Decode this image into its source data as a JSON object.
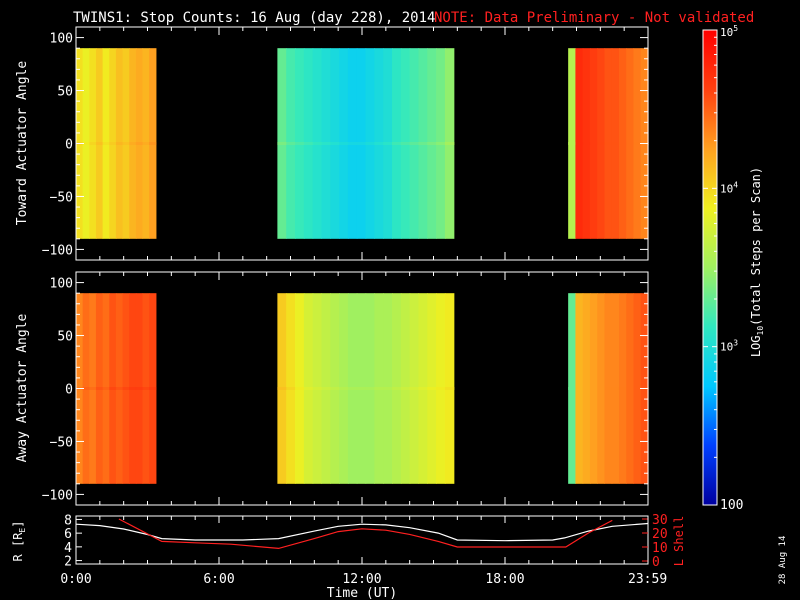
{
  "header": {
    "title": "TWINS1: Stop Counts: 16 Aug (day 228), 2014",
    "note": "NOTE: Data Preliminary - Not validated"
  },
  "colors": {
    "background": "#000000",
    "axis": "#ffffff",
    "note": "#ff2020",
    "r_line": "#ffffff",
    "lshell_line": "#ff2020"
  },
  "colorbar": {
    "label_prefix": "LOG",
    "label_sub": "10",
    "label_suffix": "(Total Steps per Scan)",
    "tick_labels": [
      {
        "base": "10",
        "exp": "5",
        "value": 100000
      },
      {
        "base": "10",
        "exp": "4",
        "value": 10000
      },
      {
        "base": "10",
        "exp": "3",
        "value": 1000
      },
      {
        "base": "100",
        "exp": "",
        "value": 100
      }
    ],
    "scale": "log",
    "range": [
      100,
      100000
    ],
    "colormap": [
      "#0000a0",
      "#0040ff",
      "#00c8ff",
      "#30e8c0",
      "#a0f060",
      "#f0f020",
      "#ffa020",
      "#ff4010",
      "#ff0000"
    ]
  },
  "stamp": "28 Aug 14",
  "chart_data": [
    {
      "type": "heatmap",
      "ylabel": "Toward Actuator Angle",
      "ylim": [
        -110,
        110
      ],
      "yticks": [
        100,
        50,
        0,
        -50,
        -100
      ],
      "ytick_labels": [
        "100",
        "50",
        "0",
        "−50",
        "−100"
      ],
      "angle_range": [
        -90,
        90
      ],
      "xlim": [
        0,
        24
      ],
      "blocks": [
        {
          "start": 0.0,
          "end": 3.35,
          "log_counts": [
            3.95,
            3.85,
            3.95,
            4.05,
            3.9,
            4.0,
            4.1,
            4.05,
            4.15,
            4.2,
            4.15,
            4.25
          ],
          "equator_offset": 0.05
        },
        {
          "start": 8.45,
          "end": 15.85,
          "log_counts": [
            3.3,
            3.2,
            3.15,
            3.1,
            3.05,
            3.0,
            2.95,
            2.9,
            2.85,
            2.85,
            2.9,
            2.95,
            3.0,
            3.1,
            3.15,
            3.2,
            3.25,
            3.3,
            3.35,
            3.45
          ],
          "equator_offset": 0.08
        },
        {
          "start": 20.65,
          "end": 24.0,
          "log_counts": [
            3.6,
            4.75,
            4.7,
            4.65,
            4.6,
            4.55,
            4.55,
            4.5,
            4.45,
            4.4,
            4.35
          ],
          "equator_offset": 0.0
        }
      ]
    },
    {
      "type": "heatmap",
      "ylabel": "Away Actuator Angle",
      "ylim": [
        -110,
        110
      ],
      "yticks": [
        100,
        50,
        0,
        -50,
        -100
      ],
      "ytick_labels": [
        "100",
        "50",
        "0",
        "−50",
        "−100"
      ],
      "angle_range": [
        -90,
        90
      ],
      "xlim": [
        0,
        24
      ],
      "blocks": [
        {
          "start": 0.0,
          "end": 3.35,
          "log_counts": [
            4.35,
            4.45,
            4.4,
            4.5,
            4.45,
            4.55,
            4.5,
            4.55,
            4.6,
            4.6,
            4.55,
            4.6
          ],
          "equator_offset": 0.05
        },
        {
          "start": 8.45,
          "end": 15.85,
          "log_counts": [
            4.05,
            3.95,
            3.85,
            3.75,
            3.7,
            3.65,
            3.6,
            3.55,
            3.5,
            3.5,
            3.5,
            3.55,
            3.55,
            3.6,
            3.65,
            3.7,
            3.75,
            3.8,
            3.85,
            3.9
          ],
          "equator_offset": 0.05
        },
        {
          "start": 20.65,
          "end": 24.0,
          "log_counts": [
            3.3,
            4.15,
            4.2,
            4.25,
            4.3,
            4.35,
            4.35,
            4.4,
            4.45,
            4.5,
            4.55
          ],
          "equator_offset": 0.0
        }
      ]
    },
    {
      "type": "line",
      "ylabel": "R [R",
      "ylabel_sub": "E",
      "ylabel_end": "]",
      "ylim": [
        1.5,
        8.5
      ],
      "yticks": [
        8,
        6,
        4,
        2
      ],
      "ytick_labels": [
        "8",
        "6",
        "4",
        "2"
      ],
      "y2label": "L Shell",
      "y2lim": [
        0,
        30
      ],
      "y2ticks": [
        30,
        20,
        10,
        0
      ],
      "y2tick_labels": [
        "30",
        "20",
        "10",
        "0"
      ],
      "xlim": [
        0,
        24
      ],
      "xlabel": "Time (UT)",
      "xtick_values": [
        0,
        6,
        12,
        18,
        23.983
      ],
      "xtick_labels": [
        "0:00",
        "6:00",
        "12:00",
        "18:00",
        "23:59"
      ],
      "series": [
        {
          "axis": "left",
          "x": [
            0,
            1,
            2,
            3,
            3.6,
            5,
            7,
            8.5,
            10,
            11,
            12,
            13,
            14,
            15.2,
            16,
            18,
            20,
            20.5,
            21.5,
            22.5,
            24
          ],
          "y": [
            7.3,
            7.1,
            6.6,
            5.8,
            5.2,
            5.0,
            5.0,
            5.2,
            6.3,
            7.0,
            7.3,
            7.2,
            6.8,
            6.0,
            5.0,
            4.9,
            5.0,
            5.3,
            6.3,
            7.0,
            7.4
          ]
        },
        {
          "axis": "right",
          "x": [
            1.8,
            3.6,
            5,
            6.5,
            8.5,
            10,
            11,
            12,
            13,
            14,
            15.2,
            16,
            18,
            20.55,
            21.5,
            22.5
          ],
          "y": [
            30,
            14,
            13,
            12,
            9,
            16,
            21,
            23,
            22,
            19,
            14,
            10,
            10,
            10,
            20,
            29
          ]
        }
      ]
    }
  ]
}
